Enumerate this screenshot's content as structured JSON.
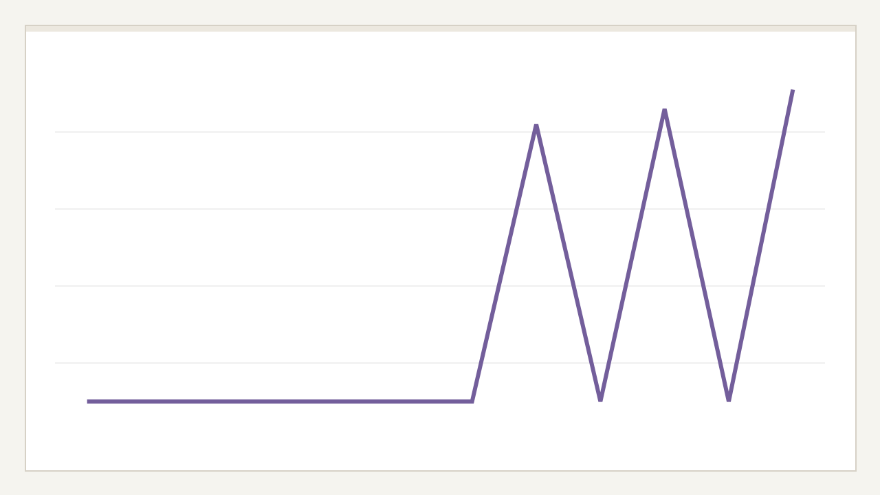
{
  "chart_data": {
    "type": "line",
    "categories": [
      null,
      null,
      null,
      null,
      null,
      null,
      null,
      null,
      null,
      null,
      null,
      null
    ],
    "series": [
      {
        "color": "#735e9b",
        "values": [
          0.5,
          0.5,
          0.5,
          0.5,
          0.5,
          0.5,
          0.5,
          4.1,
          0.5,
          4.3,
          0.5,
          4.55
        ]
      }
    ],
    "ylim": [
      0,
      5
    ],
    "yticks": [
      1,
      2,
      3,
      4
    ],
    "grid": true
  }
}
